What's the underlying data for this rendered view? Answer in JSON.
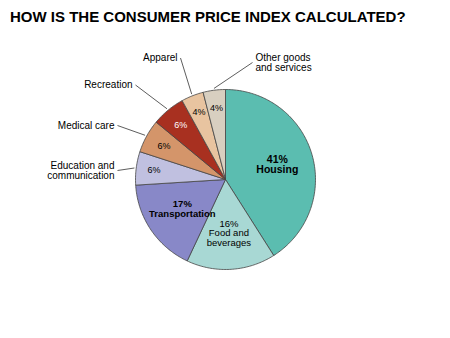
{
  "chart_data": {
    "type": "pie",
    "title": "HOW IS THE CONSUMER PRICE INDEX CALCULATED?",
    "categories": [
      "Housing",
      "Food and\nbeverages",
      "Transportation",
      "Education and\ncommunication",
      "Medical care",
      "Recreation",
      "Apparel",
      "Other goods\nand services"
    ],
    "values": [
      41,
      16,
      17,
      6,
      6,
      6,
      4,
      4
    ],
    "value_labels": [
      "41%",
      "16%",
      "17%",
      "6%",
      "6%",
      "6%",
      "4%",
      "4%"
    ],
    "colors": [
      "#5bbdb0",
      "#a8d8d4",
      "#8888c8",
      "#c0c0e0",
      "#d4956a",
      "#a83020",
      "#e8c4a0",
      "#d8cfc0"
    ],
    "data_labels": true
  }
}
